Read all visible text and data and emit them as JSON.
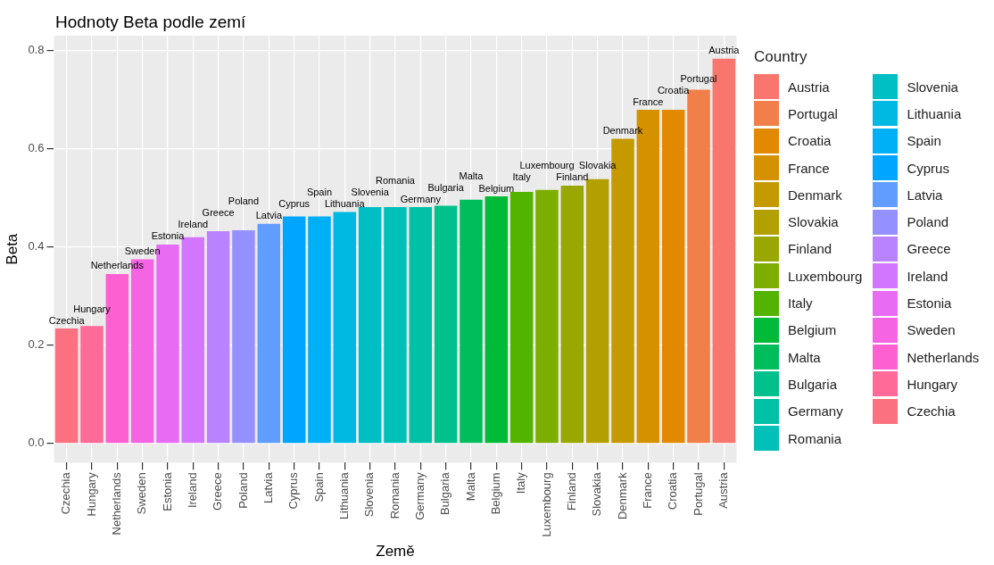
{
  "chart_data": {
    "type": "bar",
    "title": "Hodnoty Beta podle zemí",
    "xlabel": "Země",
    "ylabel": "Beta",
    "legend_title": "Country",
    "legend": "right",
    "grid": true,
    "categories": [
      "Czechia",
      "Hungary",
      "Netherlands",
      "Sweden",
      "Estonia",
      "Ireland",
      "Greece",
      "Poland",
      "Latvia",
      "Cyprus",
      "Spain",
      "Lithuania",
      "Slovenia",
      "Romania",
      "Germany",
      "Bulgaria",
      "Malta",
      "Belgium",
      "Italy",
      "Luxembourg",
      "Finland",
      "Slovakia",
      "Denmark",
      "France",
      "Croatia",
      "Portugal",
      "Austria"
    ],
    "ylim": [
      -0.039,
      0.83
    ],
    "yticks": [
      {
        "value": 0,
        "label": "0.0"
      },
      {
        "value": 0.2,
        "label": "0.2"
      },
      {
        "value": 0.4,
        "label": "0.4"
      },
      {
        "value": 0.6,
        "label": "0.6"
      },
      {
        "value": 0.8,
        "label": "0.8"
      }
    ],
    "series": [
      {
        "name": "Czechia",
        "color": "#FC717F",
        "values": [
          0.234,
          null,
          null,
          null,
          null,
          null,
          null,
          null,
          null,
          null,
          null,
          null,
          null,
          null,
          null,
          null,
          null,
          null,
          null,
          null,
          null,
          null,
          null,
          null,
          null,
          null,
          null
        ]
      },
      {
        "name": "Hungary",
        "color": "#FF6A98",
        "values": [
          null,
          0.239,
          null,
          null,
          null,
          null,
          null,
          null,
          null,
          null,
          null,
          null,
          null,
          null,
          null,
          null,
          null,
          null,
          null,
          null,
          null,
          null,
          null,
          null,
          null,
          null,
          null
        ]
      },
      {
        "name": "Netherlands",
        "color": "#FD61D1",
        "values": [
          null,
          null,
          0.345,
          null,
          null,
          null,
          null,
          null,
          null,
          null,
          null,
          null,
          null,
          null,
          null,
          null,
          null,
          null,
          null,
          null,
          null,
          null,
          null,
          null,
          null,
          null,
          null
        ]
      },
      {
        "name": "Sweden",
        "color": "#F564E3",
        "values": [
          null,
          null,
          null,
          0.375,
          null,
          null,
          null,
          null,
          null,
          null,
          null,
          null,
          null,
          null,
          null,
          null,
          null,
          null,
          null,
          null,
          null,
          null,
          null,
          null,
          null,
          null,
          null
        ]
      },
      {
        "name": "Estonia",
        "color": "#E76BF3",
        "values": [
          null,
          null,
          null,
          null,
          0.405,
          null,
          null,
          null,
          null,
          null,
          null,
          null,
          null,
          null,
          null,
          null,
          null,
          null,
          null,
          null,
          null,
          null,
          null,
          null,
          null,
          null,
          null
        ]
      },
      {
        "name": "Ireland",
        "color": "#D376FF",
        "values": [
          null,
          null,
          null,
          null,
          null,
          0.42,
          null,
          null,
          null,
          null,
          null,
          null,
          null,
          null,
          null,
          null,
          null,
          null,
          null,
          null,
          null,
          null,
          null,
          null,
          null,
          null,
          null
        ]
      },
      {
        "name": "Greece",
        "color": "#B983FF",
        "values": [
          null,
          null,
          null,
          null,
          null,
          null,
          0.432,
          null,
          null,
          null,
          null,
          null,
          null,
          null,
          null,
          null,
          null,
          null,
          null,
          null,
          null,
          null,
          null,
          null,
          null,
          null,
          null
        ]
      },
      {
        "name": "Poland",
        "color": "#9590FF",
        "values": [
          null,
          null,
          null,
          null,
          null,
          null,
          null,
          0.434,
          null,
          null,
          null,
          null,
          null,
          null,
          null,
          null,
          null,
          null,
          null,
          null,
          null,
          null,
          null,
          null,
          null,
          null,
          null
        ]
      },
      {
        "name": "Latvia",
        "color": "#619CFF",
        "values": [
          null,
          null,
          null,
          null,
          null,
          null,
          null,
          null,
          0.447,
          null,
          null,
          null,
          null,
          null,
          null,
          null,
          null,
          null,
          null,
          null,
          null,
          null,
          null,
          null,
          null,
          null,
          null
        ]
      },
      {
        "name": "Cyprus",
        "color": "#00A5FF",
        "values": [
          null,
          null,
          null,
          null,
          null,
          null,
          null,
          null,
          null,
          0.462,
          null,
          null,
          null,
          null,
          null,
          null,
          null,
          null,
          null,
          null,
          null,
          null,
          null,
          null,
          null,
          null,
          null
        ]
      },
      {
        "name": "Spain",
        "color": "#00B0F6",
        "values": [
          null,
          null,
          null,
          null,
          null,
          null,
          null,
          null,
          null,
          null,
          0.462,
          null,
          null,
          null,
          null,
          null,
          null,
          null,
          null,
          null,
          null,
          null,
          null,
          null,
          null,
          null,
          null
        ]
      },
      {
        "name": "Lithuania",
        "color": "#00B9E3",
        "values": [
          null,
          null,
          null,
          null,
          null,
          null,
          null,
          null,
          null,
          null,
          null,
          0.471,
          null,
          null,
          null,
          null,
          null,
          null,
          null,
          null,
          null,
          null,
          null,
          null,
          null,
          null,
          null
        ]
      },
      {
        "name": "Slovenia",
        "color": "#00BFC4",
        "values": [
          null,
          null,
          null,
          null,
          null,
          null,
          null,
          null,
          null,
          null,
          null,
          null,
          0.481,
          null,
          null,
          null,
          null,
          null,
          null,
          null,
          null,
          null,
          null,
          null,
          null,
          null,
          null
        ]
      },
      {
        "name": "Romania",
        "color": "#00C0B8",
        "values": [
          null,
          null,
          null,
          null,
          null,
          null,
          null,
          null,
          null,
          null,
          null,
          null,
          null,
          0.481,
          null,
          null,
          null,
          null,
          null,
          null,
          null,
          null,
          null,
          null,
          null,
          null,
          null
        ]
      },
      {
        "name": "Germany",
        "color": "#00C0A5",
        "values": [
          null,
          null,
          null,
          null,
          null,
          null,
          null,
          null,
          null,
          null,
          null,
          null,
          null,
          null,
          0.481,
          null,
          null,
          null,
          null,
          null,
          null,
          null,
          null,
          null,
          null,
          null,
          null
        ]
      },
      {
        "name": "Bulgaria",
        "color": "#00C08B",
        "values": [
          null,
          null,
          null,
          null,
          null,
          null,
          null,
          null,
          null,
          null,
          null,
          null,
          null,
          null,
          null,
          0.484,
          null,
          null,
          null,
          null,
          null,
          null,
          null,
          null,
          null,
          null,
          null
        ]
      },
      {
        "name": "Malta",
        "color": "#00BD5C",
        "values": [
          null,
          null,
          null,
          null,
          null,
          null,
          null,
          null,
          null,
          null,
          null,
          null,
          null,
          null,
          null,
          null,
          0.496,
          null,
          null,
          null,
          null,
          null,
          null,
          null,
          null,
          null,
          null
        ]
      },
      {
        "name": "Belgium",
        "color": "#00BA38",
        "values": [
          null,
          null,
          null,
          null,
          null,
          null,
          null,
          null,
          null,
          null,
          null,
          null,
          null,
          null,
          null,
          null,
          null,
          0.503,
          null,
          null,
          null,
          null,
          null,
          null,
          null,
          null,
          null
        ]
      },
      {
        "name": "Italy",
        "color": "#53B400",
        "values": [
          null,
          null,
          null,
          null,
          null,
          null,
          null,
          null,
          null,
          null,
          null,
          null,
          null,
          null,
          null,
          null,
          null,
          null,
          0.512,
          null,
          null,
          null,
          null,
          null,
          null,
          null,
          null
        ]
      },
      {
        "name": "Luxembourg",
        "color": "#7CAE00",
        "values": [
          null,
          null,
          null,
          null,
          null,
          null,
          null,
          null,
          null,
          null,
          null,
          null,
          null,
          null,
          null,
          null,
          null,
          null,
          null,
          0.516,
          null,
          null,
          null,
          null,
          null,
          null,
          null
        ]
      },
      {
        "name": "Finland",
        "color": "#99A800",
        "values": [
          null,
          null,
          null,
          null,
          null,
          null,
          null,
          null,
          null,
          null,
          null,
          null,
          null,
          null,
          null,
          null,
          null,
          null,
          null,
          null,
          0.525,
          null,
          null,
          null,
          null,
          null,
          null
        ]
      },
      {
        "name": "Slovakia",
        "color": "#B1A000",
        "values": [
          null,
          null,
          null,
          null,
          null,
          null,
          null,
          null,
          null,
          null,
          null,
          null,
          null,
          null,
          null,
          null,
          null,
          null,
          null,
          null,
          null,
          0.538,
          null,
          null,
          null,
          null,
          null
        ]
      },
      {
        "name": "Denmark",
        "color": "#C49A00",
        "values": [
          null,
          null,
          null,
          null,
          null,
          null,
          null,
          null,
          null,
          null,
          null,
          null,
          null,
          null,
          null,
          null,
          null,
          null,
          null,
          null,
          null,
          null,
          0.62,
          null,
          null,
          null,
          null
        ]
      },
      {
        "name": "France",
        "color": "#D59100",
        "values": [
          null,
          null,
          null,
          null,
          null,
          null,
          null,
          null,
          null,
          null,
          null,
          null,
          null,
          null,
          null,
          null,
          null,
          null,
          null,
          null,
          null,
          null,
          null,
          0.679,
          null,
          null,
          null
        ]
      },
      {
        "name": "Croatia",
        "color": "#E38900",
        "values": [
          null,
          null,
          null,
          null,
          null,
          null,
          null,
          null,
          null,
          null,
          null,
          null,
          null,
          null,
          null,
          null,
          null,
          null,
          null,
          null,
          null,
          null,
          null,
          null,
          0.679,
          null,
          null
        ]
      },
      {
        "name": "Portugal",
        "color": "#F07F4A",
        "values": [
          null,
          null,
          null,
          null,
          null,
          null,
          null,
          null,
          null,
          null,
          null,
          null,
          null,
          null,
          null,
          null,
          null,
          null,
          null,
          null,
          null,
          null,
          null,
          null,
          null,
          0.72,
          null
        ]
      },
      {
        "name": "Austria",
        "color": "#F8766D",
        "values": [
          null,
          null,
          null,
          null,
          null,
          null,
          null,
          null,
          null,
          null,
          null,
          null,
          null,
          null,
          null,
          null,
          null,
          null,
          null,
          null,
          null,
          null,
          null,
          null,
          null,
          null,
          0.783
        ]
      }
    ]
  }
}
